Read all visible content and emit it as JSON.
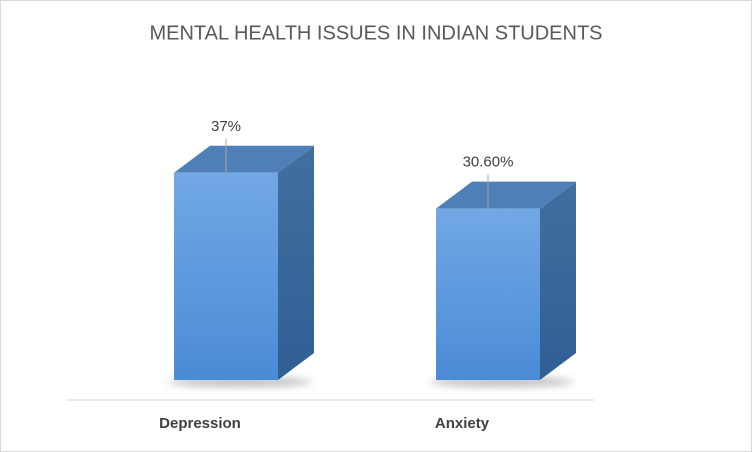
{
  "chart_data": {
    "type": "bar3d",
    "title": "MENTAL HEALTH ISSUES IN INDIAN STUDENTS",
    "categories": [
      "Depression",
      "Anxiety"
    ],
    "values": [
      37,
      30.6
    ],
    "value_labels": [
      "37%",
      "30.60%"
    ],
    "color": "#5b9bd5"
  }
}
